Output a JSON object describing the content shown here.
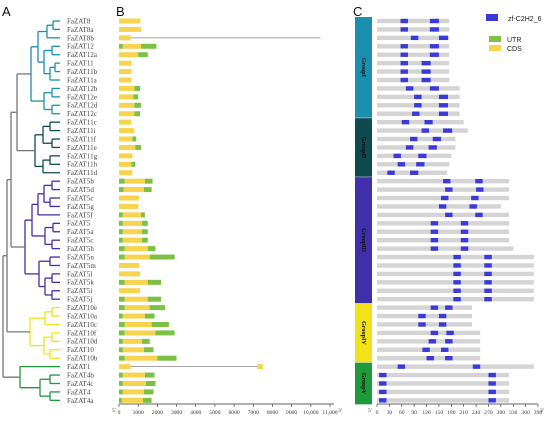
{
  "panels": {
    "a": "A",
    "b": "B",
    "c": "C"
  },
  "genes": [
    {
      "name": "FaZAT8",
      "clade": 0,
      "len": 1120,
      "utr5": 0,
      "utr3": 0,
      "intron": null,
      "motifs": [
        [
          57,
          75
        ],
        [
          128,
          150
        ]
      ]
    },
    {
      "name": "FaZAT8a",
      "clade": 0,
      "len": 1150,
      "utr5": 0,
      "utr3": 0,
      "intron": null,
      "motifs": [
        [
          57,
          75
        ],
        [
          128,
          150
        ]
      ]
    },
    {
      "name": "FaZAT8b",
      "clade": 0,
      "len": 1180,
      "utr5": 0,
      "utr3": 0,
      "intron": [
        600,
        10500
      ],
      "motifs": [
        [
          82,
          100
        ],
        [
          150,
          172
        ]
      ]
    },
    {
      "name": "FaZAT12",
      "clade": 0,
      "len": 1950,
      "utr5": 200,
      "utr3": 800,
      "intron": null,
      "motifs": [
        [
          57,
          75
        ],
        [
          128,
          150
        ]
      ]
    },
    {
      "name": "FaZAT12a",
      "clade": 0,
      "len": 1500,
      "utr5": 0,
      "utr3": 500,
      "intron": null,
      "motifs": [
        [
          57,
          75
        ],
        [
          128,
          150
        ]
      ]
    },
    {
      "name": "FaZAT11",
      "clade": 0,
      "len": 650,
      "utr5": 0,
      "utr3": 0,
      "intron": null,
      "motifs": [
        [
          57,
          75
        ],
        [
          108,
          130
        ]
      ]
    },
    {
      "name": "FaZAT11b",
      "clade": 0,
      "len": 650,
      "utr5": 0,
      "utr3": 0,
      "intron": null,
      "motifs": [
        [
          57,
          75
        ],
        [
          108,
          130
        ]
      ]
    },
    {
      "name": "FaZAT11a",
      "clade": 0,
      "len": 650,
      "utr5": 0,
      "utr3": 0,
      "intron": null,
      "motifs": [
        [
          57,
          75
        ],
        [
          108,
          130
        ]
      ]
    },
    {
      "name": "FaZAT12b",
      "clade": 0,
      "len": 1100,
      "utr5": 0,
      "utr3": 300,
      "intron": null,
      "motifs": [
        [
          70,
          88
        ],
        [
          128,
          150
        ]
      ]
    },
    {
      "name": "FaZAT12e",
      "clade": 0,
      "len": 1000,
      "utr5": 0,
      "utr3": 250,
      "intron": null,
      "motifs": [
        [
          90,
          108
        ],
        [
          150,
          172
        ]
      ]
    },
    {
      "name": "FaZAT12d",
      "clade": 0,
      "len": 1150,
      "utr5": 0,
      "utr3": 350,
      "intron": null,
      "motifs": [
        [
          90,
          108
        ],
        [
          150,
          172
        ]
      ]
    },
    {
      "name": "FaZAT12c",
      "clade": 0,
      "len": 1100,
      "utr5": 0,
      "utr3": 300,
      "intron": null,
      "motifs": [
        [
          85,
          103
        ],
        [
          150,
          172
        ]
      ]
    },
    {
      "name": "FaZAT11c",
      "clade": 1,
      "len": 650,
      "utr5": 0,
      "utr3": 0,
      "intron": null,
      "motifs": [
        [
          60,
          78
        ],
        [
          115,
          135
        ]
      ]
    },
    {
      "name": "FaZAT11i",
      "clade": 1,
      "len": 800,
      "utr5": 0,
      "utr3": 0,
      "intron": null,
      "motifs": [
        [
          108,
          126
        ],
        [
          160,
          182
        ]
      ]
    },
    {
      "name": "FaZAT11f",
      "clade": 1,
      "len": 900,
      "utr5": 0,
      "utr3": 200,
      "intron": null,
      "motifs": [
        [
          80,
          98
        ],
        [
          135,
          155
        ]
      ]
    },
    {
      "name": "FaZAT11e",
      "clade": 1,
      "len": 1150,
      "utr5": 0,
      "utr3": 300,
      "intron": null,
      "motifs": [
        [
          70,
          88
        ],
        [
          125,
          145
        ]
      ]
    },
    {
      "name": "FaZAT11g",
      "clade": 1,
      "len": 700,
      "utr5": 0,
      "utr3": 0,
      "intron": null,
      "motifs": [
        [
          40,
          58
        ],
        [
          100,
          120
        ]
      ]
    },
    {
      "name": "FaZAT11h",
      "clade": 1,
      "len": 850,
      "utr5": 0,
      "utr3": 200,
      "intron": null,
      "motifs": [
        [
          50,
          68
        ],
        [
          95,
          115
        ]
      ]
    },
    {
      "name": "FaZAT11d",
      "clade": 1,
      "len": 700,
      "utr5": 0,
      "utr3": 0,
      "intron": null,
      "motifs": [
        [
          25,
          43
        ],
        [
          80,
          100
        ]
      ]
    },
    {
      "name": "FaZAT5b",
      "clade": 2,
      "len": 1750,
      "utr5": 300,
      "utr3": 400,
      "intron": null,
      "motifs": [
        [
          160,
          178
        ],
        [
          238,
          256
        ]
      ]
    },
    {
      "name": "FaZAT5d",
      "clade": 2,
      "len": 1700,
      "utr5": 250,
      "utr3": 400,
      "intron": null,
      "motifs": [
        [
          165,
          183
        ],
        [
          240,
          258
        ]
      ]
    },
    {
      "name": "FaZAT5c",
      "clade": 2,
      "len": 1050,
      "utr5": 0,
      "utr3": 0,
      "intron": null,
      "motifs": [
        [
          155,
          173
        ],
        [
          228,
          246
        ]
      ]
    },
    {
      "name": "FaZAT5g",
      "clade": 2,
      "len": 1000,
      "utr5": 0,
      "utr3": 0,
      "intron": null,
      "motifs": [
        [
          150,
          168
        ],
        [
          224,
          242
        ]
      ]
    },
    {
      "name": "FaZAT5f",
      "clade": 2,
      "len": 1350,
      "utr5": 200,
      "utr3": 200,
      "intron": null,
      "motifs": [
        [
          165,
          183
        ],
        [
          238,
          256
        ]
      ]
    },
    {
      "name": "FaZAT5",
      "clade": 2,
      "len": 1500,
      "utr5": 200,
      "utr3": 300,
      "intron": null,
      "motifs": [
        [
          130,
          148
        ],
        [
          203,
          221
        ]
      ]
    },
    {
      "name": "FaZAT5a",
      "clade": 2,
      "len": 1500,
      "utr5": 200,
      "utr3": 300,
      "intron": null,
      "motifs": [
        [
          130,
          148
        ],
        [
          203,
          221
        ]
      ]
    },
    {
      "name": "FaZAT5c",
      "clade": 2,
      "len": 1500,
      "utr5": 200,
      "utr3": 300,
      "intron": null,
      "motifs": [
        [
          130,
          148
        ],
        [
          203,
          221
        ]
      ]
    },
    {
      "name": "FaZAT5h",
      "clade": 2,
      "len": 1900,
      "utr5": 300,
      "utr3": 400,
      "intron": null,
      "motifs": [
        [
          130,
          148
        ],
        [
          203,
          221
        ]
      ]
    },
    {
      "name": "FaZAT5n",
      "clade": 2,
      "len": 2900,
      "utr5": 300,
      "utr3": 1300,
      "intron": null,
      "motifs": [
        [
          185,
          203
        ],
        [
          260,
          278
        ]
      ]
    },
    {
      "name": "FaZAT5m",
      "clade": 2,
      "len": 1050,
      "utr5": 0,
      "utr3": 0,
      "intron": null,
      "motifs": [
        [
          185,
          203
        ],
        [
          260,
          278
        ]
      ]
    },
    {
      "name": "FaZAT5l",
      "clade": 2,
      "len": 1100,
      "utr5": 0,
      "utr3": 0,
      "intron": null,
      "motifs": [
        [
          185,
          203
        ],
        [
          260,
          278
        ]
      ]
    },
    {
      "name": "FaZAT5k",
      "clade": 2,
      "len": 2200,
      "utr5": 300,
      "utr3": 700,
      "intron": null,
      "motifs": [
        [
          185,
          203
        ],
        [
          260,
          278
        ]
      ]
    },
    {
      "name": "FaZAT5i",
      "clade": 2,
      "len": 1100,
      "utr5": 0,
      "utr3": 0,
      "intron": null,
      "motifs": [
        [
          185,
          203
        ],
        [
          260,
          278
        ]
      ]
    },
    {
      "name": "FaZAT5j",
      "clade": 2,
      "len": 2200,
      "utr5": 300,
      "utr3": 700,
      "intron": null,
      "motifs": [
        [
          185,
          203
        ],
        [
          260,
          278
        ]
      ]
    },
    {
      "name": "FaZAT10e",
      "clade": 3,
      "len": 2400,
      "utr5": 300,
      "utr3": 800,
      "intron": null,
      "motifs": [
        [
          130,
          148
        ],
        [
          165,
          183
        ]
      ]
    },
    {
      "name": "FaZAT10a",
      "clade": 3,
      "len": 1850,
      "utr5": 200,
      "utr3": 500,
      "intron": null,
      "motifs": [
        [
          100,
          118
        ],
        [
          150,
          168
        ]
      ]
    },
    {
      "name": "FaZAT10c",
      "clade": 3,
      "len": 2600,
      "utr5": 300,
      "utr3": 900,
      "intron": null,
      "motifs": [
        [
          100,
          118
        ],
        [
          150,
          168
        ]
      ]
    },
    {
      "name": "FaZAT10f",
      "clade": 3,
      "len": 2900,
      "utr5": 300,
      "utr3": 1000,
      "intron": null,
      "motifs": [
        [
          130,
          148
        ],
        [
          168,
          186
        ]
      ]
    },
    {
      "name": "FaZAT10d",
      "clade": 3,
      "len": 1600,
      "utr5": 200,
      "utr3": 400,
      "intron": null,
      "motifs": [
        [
          125,
          143
        ],
        [
          165,
          183
        ]
      ]
    },
    {
      "name": "FaZAT10",
      "clade": 3,
      "len": 1800,
      "utr5": 200,
      "utr3": 500,
      "intron": null,
      "motifs": [
        [
          110,
          128
        ],
        [
          155,
          173
        ]
      ]
    },
    {
      "name": "FaZAT10b",
      "clade": 3,
      "len": 3000,
      "utr5": 300,
      "utr3": 1000,
      "intron": null,
      "motifs": [
        [
          120,
          138
        ],
        [
          165,
          183
        ]
      ]
    },
    {
      "name": "FaZAT1",
      "clade": 4,
      "len": 7500,
      "utr5": 0,
      "utr3": 0,
      "intron": [
        600,
        7200
      ],
      "motifs": [
        [
          50,
          68
        ],
        [
          232,
          250
        ]
      ]
    },
    {
      "name": "FaZAT4b",
      "clade": 4,
      "len": 1850,
      "utr5": 200,
      "utr3": 500,
      "intron": null,
      "motifs": [
        [
          5,
          23
        ],
        [
          270,
          288
        ]
      ]
    },
    {
      "name": "FaZAT4c",
      "clade": 4,
      "len": 1900,
      "utr5": 200,
      "utr3": 500,
      "intron": null,
      "motifs": [
        [
          5,
          23
        ],
        [
          270,
          288
        ]
      ]
    },
    {
      "name": "FaZAT4",
      "clade": 4,
      "len": 1800,
      "utr5": 200,
      "utr3": 500,
      "intron": null,
      "motifs": [
        [
          5,
          23
        ],
        [
          270,
          288
        ]
      ]
    },
    {
      "name": "FaZAT4a",
      "clade": 4,
      "len": 1700,
      "utr5": 150,
      "utr3": 450,
      "intron": null,
      "motifs": [
        [
          5,
          23
        ],
        [
          270,
          288
        ]
      ]
    }
  ],
  "groups": [
    {
      "label": "GroupI",
      "start": 0,
      "end": 11,
      "color": "#1a8fae"
    },
    {
      "label": "GroupII",
      "start": 12,
      "end": 18,
      "color": "#0f4a50"
    },
    {
      "label": "GroupIII",
      "start": 19,
      "end": 33,
      "color": "#3f2fa8"
    },
    {
      "label": "GroupIV",
      "start": 34,
      "end": 40,
      "color": "#f2e21a"
    },
    {
      "label": "GroupV",
      "start": 41,
      "end": 45,
      "color": "#1f9a3a"
    }
  ],
  "panel_b": {
    "axis_ticks": [
      "0",
      "1000",
      "2000",
      "3000",
      "4000",
      "5000",
      "6000",
      "7000",
      "8000",
      "9000",
      "10,000",
      "11,000"
    ],
    "axis_max": 11000,
    "five_prime": "5'",
    "three_prime": "3'",
    "legend": [
      {
        "label": "UTR",
        "color": "#7cc146"
      },
      {
        "label": "CDS",
        "color": "#f7d34e"
      }
    ]
  },
  "panel_c": {
    "axis_ticks": [
      "0",
      "30",
      "60",
      "90",
      "120",
      "150",
      "180",
      "210",
      "240",
      "270",
      "300",
      "330",
      "360",
      "390"
    ],
    "axis_max": 390,
    "five_prime": "5'",
    "three_prime": "3'",
    "protein_lengths": [
      175,
      175,
      175,
      175,
      175,
      175,
      175,
      175,
      200,
      200,
      200,
      200,
      210,
      220,
      190,
      190,
      180,
      175,
      170,
      320,
      320,
      320,
      300,
      320,
      320,
      320,
      320,
      330,
      380,
      380,
      380,
      380,
      380,
      380,
      230,
      230,
      230,
      250,
      250,
      250,
      250,
      380,
      320,
      320,
      320,
      320
    ],
    "legend": [
      {
        "label": "zf-C2H2_6",
        "color": "#3a3ad9"
      }
    ]
  },
  "colors": {
    "protein": "#d4d4d4",
    "intron": "#888888",
    "motif": "#3a3ad9"
  }
}
